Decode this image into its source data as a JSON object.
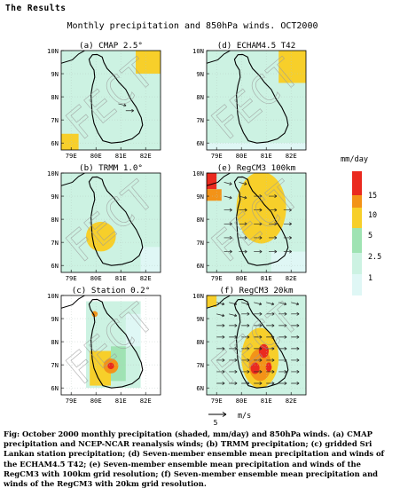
{
  "section_title": "The Results",
  "figure_title": "Monthly precipitation and 850hPa winds. OCT2000",
  "watermark": "FECT",
  "caption": "Fig: October 2000 monthly precipitation (shaded, mm/day) and 850hPa winds. (a) CMAP precipitation and NCEP-NCAR reanalysis winds; (b) TRMM precipitation; (c) gridded Sri Lankan station precipitation; (d) Seven-member ensemble mean precipitation and winds of the ECHAM4.5 T42; (e) Seven-member ensemble mean precipitation and winds of the RegCM3 with 100km grid resolution; (f) Seven-member ensemble mean precipitation and winds of the RegCM3 with 20km grid resolution.",
  "colors": {
    "c_1": "#dff7f5",
    "c_2_5": "#ccf2e2",
    "c_5": "#9fe3b3",
    "c_10": "#f7cf2a",
    "c_15": "#f39318",
    "c_max": "#ea2a1f",
    "coast": "#000000"
  },
  "chart_data": {
    "type": "heatmap",
    "units": "mm/day",
    "legend": {
      "title": "mm/day",
      "levels": [
        "15",
        "10",
        "5",
        "2.5",
        "1"
      ],
      "placement": "right"
    },
    "x_tick_labels": [
      "79E",
      "80E",
      "81E",
      "82E"
    ],
    "y_tick_labels": [
      "10N",
      "9N",
      "8N",
      "7N",
      "6N"
    ],
    "xlim": [
      78.6,
      82.6
    ],
    "ylim": [
      5.7,
      10.0
    ],
    "wind_reference": {
      "value": "5",
      "units": "m/s"
    },
    "panels": [
      {
        "label": "(a) CMAP 2.5°",
        "background": "#ccf2e2",
        "blobs": [
          {
            "type": "rect",
            "x0": 81.6,
            "x1": 82.6,
            "y0": 9.0,
            "y1": 10.0,
            "fill": "#f7cf2a"
          },
          {
            "type": "rect",
            "x0": 78.6,
            "x1": 79.3,
            "y0": 5.7,
            "y1": 6.4,
            "fill": "#f7cf2a"
          }
        ],
        "winds": [
          {
            "x": 80.9,
            "y": 7.7,
            "u": 4,
            "v": -1
          },
          {
            "x": 81.2,
            "y": 7.4,
            "u": 4,
            "v": 0
          }
        ]
      },
      {
        "label": "(d) ECHAM4.5 T42",
        "background": "#ccf2e2",
        "blobs": [
          {
            "type": "rect",
            "x0": 81.5,
            "x1": 82.6,
            "y0": 8.6,
            "y1": 10.0,
            "fill": "#f7cf2a"
          },
          {
            "type": "rect",
            "x0": 78.6,
            "x1": 82.6,
            "y0": 5.7,
            "y1": 6.0,
            "fill": "#dff7f5"
          }
        ],
        "winds": []
      },
      {
        "label": "(b) TRMM 1.0°",
        "background": "#ccf2e2",
        "blobs": [
          {
            "type": "circle",
            "cx": 80.2,
            "cy": 7.25,
            "r": 0.6,
            "fill": "#f7cf2a"
          },
          {
            "type": "rect",
            "x0": 81.8,
            "x1": 82.6,
            "y0": 5.7,
            "y1": 6.8,
            "fill": "#dff7f5"
          }
        ],
        "winds": []
      },
      {
        "label": "(e) RegCM3 100km",
        "background": "#ccf2e2",
        "blobs": [
          {
            "type": "ellipse",
            "cx": 80.8,
            "cy": 8.5,
            "rx": 1.0,
            "ry": 1.55,
            "fill": "#f7cf2a"
          },
          {
            "type": "rect",
            "x0": 78.6,
            "x1": 79.0,
            "y0": 9.3,
            "y1": 10.0,
            "fill": "#ea2a1f"
          },
          {
            "type": "rect",
            "x0": 78.6,
            "x1": 79.2,
            "y0": 8.8,
            "y1": 9.3,
            "fill": "#f39318"
          },
          {
            "type": "rect",
            "x0": 81.2,
            "x1": 82.6,
            "y0": 5.7,
            "y1": 6.6,
            "fill": "#dff7f5"
          }
        ],
        "winds": [
          {
            "x": 79.3,
            "y": 9.6,
            "u": 4,
            "v": -1
          },
          {
            "x": 79.9,
            "y": 9.6,
            "u": 4,
            "v": -1
          },
          {
            "x": 79.3,
            "y": 9.0,
            "u": 4,
            "v": -1
          },
          {
            "x": 79.9,
            "y": 9.0,
            "u": 4,
            "v": -1
          },
          {
            "x": 80.5,
            "y": 9.0,
            "u": 4,
            "v": 0
          },
          {
            "x": 81.1,
            "y": 9.0,
            "u": 4,
            "v": 0
          },
          {
            "x": 79.3,
            "y": 8.4,
            "u": 4,
            "v": 0
          },
          {
            "x": 79.9,
            "y": 8.4,
            "u": 4,
            "v": 0
          },
          {
            "x": 80.5,
            "y": 8.4,
            "u": 4,
            "v": 0
          },
          {
            "x": 81.1,
            "y": 8.4,
            "u": 4,
            "v": 0
          },
          {
            "x": 81.7,
            "y": 8.4,
            "u": 4,
            "v": 0
          },
          {
            "x": 79.3,
            "y": 7.8,
            "u": 4,
            "v": 0
          },
          {
            "x": 79.9,
            "y": 7.8,
            "u": 4,
            "v": 0
          },
          {
            "x": 80.5,
            "y": 7.8,
            "u": 4,
            "v": 0
          },
          {
            "x": 81.1,
            "y": 7.8,
            "u": 4,
            "v": 0
          },
          {
            "x": 81.7,
            "y": 7.8,
            "u": 4,
            "v": 0
          },
          {
            "x": 79.3,
            "y": 7.2,
            "u": 4,
            "v": 0
          },
          {
            "x": 79.9,
            "y": 7.2,
            "u": 4,
            "v": 0
          },
          {
            "x": 80.5,
            "y": 7.2,
            "u": 4,
            "v": 0
          },
          {
            "x": 81.1,
            "y": 7.2,
            "u": 4,
            "v": 0
          },
          {
            "x": 81.7,
            "y": 7.2,
            "u": 4,
            "v": 0
          },
          {
            "x": 79.3,
            "y": 6.6,
            "u": 4,
            "v": 0
          },
          {
            "x": 79.9,
            "y": 6.6,
            "u": 4,
            "v": 0
          },
          {
            "x": 80.5,
            "y": 6.6,
            "u": 4,
            "v": 0
          },
          {
            "x": 81.1,
            "y": 6.6,
            "u": 4,
            "v": 0
          },
          {
            "x": 81.7,
            "y": 6.6,
            "u": 4,
            "v": 0
          }
        ]
      },
      {
        "label": "(c) Station 0.2°",
        "background": "#ffffff",
        "blobs": [
          {
            "type": "rect",
            "x0": 79.6,
            "x1": 81.8,
            "y0": 6.0,
            "y1": 9.75,
            "fill": "#ccf2e2"
          },
          {
            "type": "rect",
            "x0": 79.75,
            "x1": 80.6,
            "y0": 6.1,
            "y1": 7.6,
            "fill": "#f7cf2a"
          },
          {
            "type": "rect",
            "x0": 80.6,
            "x1": 81.2,
            "y0": 6.3,
            "y1": 7.8,
            "fill": "#9fe3b3"
          },
          {
            "type": "rect",
            "x0": 81.2,
            "x1": 81.8,
            "y0": 7.8,
            "y1": 9.2,
            "fill": "#dff7f5"
          },
          {
            "type": "circle",
            "cx": 79.95,
            "cy": 9.2,
            "r": 0.12,
            "fill": "#f39318"
          },
          {
            "type": "circle",
            "cx": 80.6,
            "cy": 6.95,
            "r": 0.3,
            "fill": "#f39318"
          },
          {
            "type": "circle",
            "cx": 80.6,
            "cy": 6.95,
            "r": 0.13,
            "fill": "#ea2a1f"
          }
        ],
        "winds": []
      },
      {
        "label": "(f) RegCM3 20km",
        "background": "#ccf2e2",
        "blobs": [
          {
            "type": "ellipse",
            "cx": 80.75,
            "cy": 7.3,
            "rx": 0.75,
            "ry": 1.3,
            "fill": "#f7cf2a"
          },
          {
            "type": "ellipse",
            "cx": 80.75,
            "cy": 7.0,
            "rx": 0.45,
            "ry": 0.7,
            "fill": "#f39318"
          },
          {
            "type": "ellipse",
            "cx": 80.9,
            "cy": 7.6,
            "rx": 0.2,
            "ry": 0.3,
            "fill": "#ea2a1f"
          },
          {
            "type": "ellipse",
            "cx": 80.55,
            "cy": 6.85,
            "rx": 0.18,
            "ry": 0.25,
            "fill": "#ea2a1f"
          },
          {
            "type": "ellipse",
            "cx": 81.1,
            "cy": 6.9,
            "rx": 0.12,
            "ry": 0.2,
            "fill": "#ea2a1f"
          },
          {
            "type": "rect",
            "x0": 78.6,
            "x1": 79.0,
            "y0": 9.5,
            "y1": 10.0,
            "fill": "#f7cf2a"
          }
        ],
        "winds": [
          {
            "x": 79.0,
            "y": 9.7,
            "u": 4,
            "v": -1
          },
          {
            "x": 79.5,
            "y": 9.7,
            "u": 4,
            "v": -1
          },
          {
            "x": 80.0,
            "y": 9.7,
            "u": 4,
            "v": -1
          },
          {
            "x": 80.5,
            "y": 9.7,
            "u": 4,
            "v": -1
          },
          {
            "x": 81.0,
            "y": 9.7,
            "u": 4,
            "v": -1
          },
          {
            "x": 81.5,
            "y": 9.7,
            "u": 4,
            "v": -1
          },
          {
            "x": 82.0,
            "y": 9.7,
            "u": 4,
            "v": -1
          },
          {
            "x": 79.0,
            "y": 9.2,
            "u": 4,
            "v": -1
          },
          {
            "x": 79.5,
            "y": 9.2,
            "u": 4,
            "v": -1
          },
          {
            "x": 80.0,
            "y": 9.2,
            "u": 4,
            "v": 0
          },
          {
            "x": 80.5,
            "y": 9.2,
            "u": 4,
            "v": 0
          },
          {
            "x": 81.0,
            "y": 9.2,
            "u": 4,
            "v": 0
          },
          {
            "x": 81.5,
            "y": 9.2,
            "u": 4,
            "v": 0
          },
          {
            "x": 82.0,
            "y": 9.2,
            "u": 4,
            "v": 0
          },
          {
            "x": 79.0,
            "y": 8.7,
            "u": 4,
            "v": 0
          },
          {
            "x": 79.5,
            "y": 8.7,
            "u": 4,
            "v": 0
          },
          {
            "x": 80.0,
            "y": 8.7,
            "u": 4,
            "v": 0
          },
          {
            "x": 80.5,
            "y": 8.7,
            "u": 4,
            "v": 0
          },
          {
            "x": 81.0,
            "y": 8.7,
            "u": 4,
            "v": 0
          },
          {
            "x": 81.5,
            "y": 8.7,
            "u": 4,
            "v": 0
          },
          {
            "x": 82.0,
            "y": 8.7,
            "u": 4,
            "v": 0
          },
          {
            "x": 79.0,
            "y": 8.2,
            "u": 4,
            "v": 0
          },
          {
            "x": 79.5,
            "y": 8.2,
            "u": 4,
            "v": 0
          },
          {
            "x": 80.0,
            "y": 8.2,
            "u": 4,
            "v": 0
          },
          {
            "x": 80.5,
            "y": 8.2,
            "u": 4,
            "v": 0
          },
          {
            "x": 81.0,
            "y": 8.2,
            "u": 4,
            "v": 0
          },
          {
            "x": 81.5,
            "y": 8.2,
            "u": 4,
            "v": 0
          },
          {
            "x": 82.0,
            "y": 8.2,
            "u": 4,
            "v": 0
          },
          {
            "x": 79.0,
            "y": 7.7,
            "u": 4,
            "v": 0
          },
          {
            "x": 79.5,
            "y": 7.7,
            "u": 4,
            "v": 0
          },
          {
            "x": 80.0,
            "y": 7.7,
            "u": 4,
            "v": 0
          },
          {
            "x": 80.5,
            "y": 7.7,
            "u": 4,
            "v": 0
          },
          {
            "x": 81.0,
            "y": 7.7,
            "u": 4,
            "v": 0
          },
          {
            "x": 81.5,
            "y": 7.7,
            "u": 4,
            "v": 0
          },
          {
            "x": 82.0,
            "y": 7.7,
            "u": 4,
            "v": 0
          },
          {
            "x": 79.0,
            "y": 7.2,
            "u": 4,
            "v": 0
          },
          {
            "x": 79.5,
            "y": 7.2,
            "u": 4,
            "v": 0
          },
          {
            "x": 80.0,
            "y": 7.2,
            "u": 4,
            "v": 0
          },
          {
            "x": 80.5,
            "y": 7.2,
            "u": 4,
            "v": 0
          },
          {
            "x": 81.0,
            "y": 7.2,
            "u": 4,
            "v": 0
          },
          {
            "x": 81.5,
            "y": 7.2,
            "u": 4,
            "v": 0
          },
          {
            "x": 82.0,
            "y": 7.2,
            "u": 4,
            "v": 0
          },
          {
            "x": 79.0,
            "y": 6.7,
            "u": 4,
            "v": 0
          },
          {
            "x": 79.5,
            "y": 6.7,
            "u": 4,
            "v": 0
          },
          {
            "x": 80.0,
            "y": 6.7,
            "u": 4,
            "v": 0
          },
          {
            "x": 80.5,
            "y": 6.7,
            "u": 4,
            "v": 0
          },
          {
            "x": 81.0,
            "y": 6.7,
            "u": 4,
            "v": 0
          },
          {
            "x": 81.5,
            "y": 6.7,
            "u": 4,
            "v": 0
          },
          {
            "x": 82.0,
            "y": 6.7,
            "u": 4,
            "v": 0
          },
          {
            "x": 79.0,
            "y": 6.2,
            "u": 4,
            "v": 0
          },
          {
            "x": 79.5,
            "y": 6.2,
            "u": 4,
            "v": 0
          },
          {
            "x": 80.0,
            "y": 6.2,
            "u": 4,
            "v": 0
          },
          {
            "x": 80.5,
            "y": 6.2,
            "u": 4,
            "v": 0
          },
          {
            "x": 81.0,
            "y": 6.2,
            "u": 4,
            "v": 0
          },
          {
            "x": 81.5,
            "y": 6.2,
            "u": 4,
            "v": 0
          },
          {
            "x": 82.0,
            "y": 6.2,
            "u": 4,
            "v": 0
          }
        ]
      }
    ]
  }
}
